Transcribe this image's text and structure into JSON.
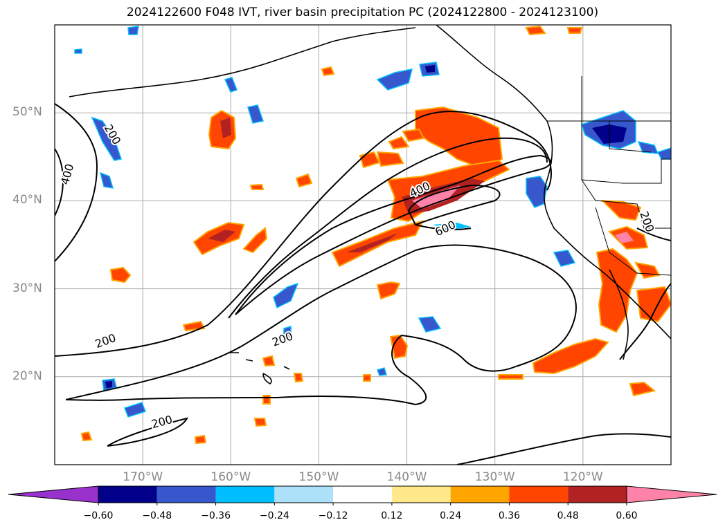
{
  "title": "2024122600 F048 IVT, river basin precipitation PC (2024122800 - 2024123100)",
  "lat_labels": [
    {
      "text": "50°N",
      "lat": 50
    },
    {
      "text": "40°N",
      "lat": 40
    },
    {
      "text": "30°N",
      "lat": 30
    },
    {
      "text": "20°N",
      "lat": 20
    }
  ],
  "lon_labels": [
    {
      "text": "170°W",
      "lon": -170
    },
    {
      "text": "160°W",
      "lon": -160
    },
    {
      "text": "150°W",
      "lon": -150
    },
    {
      "text": "140°W",
      "lon": -140
    },
    {
      "text": "130°W",
      "lon": -130
    },
    {
      "text": "120°W",
      "lon": -120
    }
  ],
  "map_extent": {
    "lon_min": -180,
    "lon_max": -110,
    "lat_min": 10,
    "lat_max": 60
  },
  "contour_labels": [
    {
      "text": "200",
      "lon": -173.5,
      "lat": 47.5,
      "rot": 60
    },
    {
      "text": "400",
      "lon": -178.5,
      "lat": 43,
      "rot": -75
    },
    {
      "text": "200",
      "lon": -174.2,
      "lat": 24,
      "rot": -20
    },
    {
      "text": "200",
      "lon": -167.8,
      "lat": 14.8,
      "rot": -15
    },
    {
      "text": "200",
      "lon": -154.1,
      "lat": 24.2,
      "rot": -20
    },
    {
      "text": "400",
      "lon": -138.5,
      "lat": 41.2,
      "rot": -25
    },
    {
      "text": "600",
      "lon": -135.6,
      "lat": 36.8,
      "rot": -25
    },
    {
      "text": "200",
      "lon": -112.8,
      "lat": 37.6,
      "rot": 70
    }
  ],
  "colorbar": {
    "colors": [
      "#9932CC",
      "#00008B",
      "#3658CC",
      "#00BFFF",
      "#ADE1F9",
      "#FFFFFF",
      "#FFE98A",
      "#FFA500",
      "#FF4500",
      "#B22222",
      "#FF83A8"
    ],
    "tick_labels": [
      "−0.60",
      "−0.48",
      "−0.36",
      "−0.24",
      "−0.12",
      "0.12",
      "0.24",
      "0.36",
      "0.48",
      "0.60"
    ]
  },
  "icons": [
    "map-gridlines",
    "coastline",
    "state-borders"
  ]
}
